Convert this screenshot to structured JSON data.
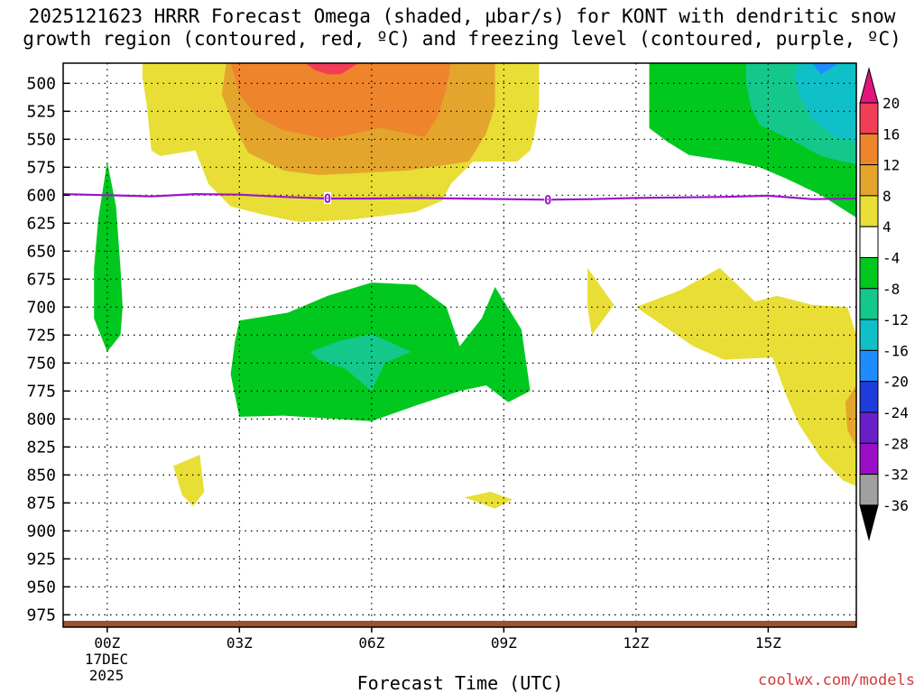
{
  "title_line1": "2025121623 HRRR Forecast Omega (shaded, µbar/s) for KONT with dendritic snow",
  "title_line2": "growth region (contoured, red, ºC) and freezing level (contoured, purple, ºC)",
  "credit": "coolwx.com/models",
  "chart_data": {
    "type": "heatmap",
    "title": "2025121623 HRRR Forecast Omega (shaded, µbar/s) for KONT with dendritic snow growth region (contoured, red, ºC) and freezing level (contoured, purple, ºC)",
    "xlabel": "Forecast Time (UTC)",
    "ylabel": "",
    "x_range_hours": [
      -1,
      17
    ],
    "x_ticks": [
      {
        "hour": 0,
        "label": "00Z"
      },
      {
        "hour": 3,
        "label": "03Z"
      },
      {
        "hour": 6,
        "label": "06Z"
      },
      {
        "hour": 9,
        "label": "09Z"
      },
      {
        "hour": 12,
        "label": "12Z"
      },
      {
        "hour": 15,
        "label": "15Z"
      }
    ],
    "date_label_line1": "17DEC",
    "date_label_line2": "2025",
    "y_range_mb": [
      986,
      482
    ],
    "y_ticks": [
      500,
      525,
      550,
      575,
      600,
      625,
      650,
      675,
      700,
      725,
      750,
      775,
      800,
      825,
      850,
      875,
      900,
      925,
      950,
      975
    ],
    "colorbar": {
      "labels": [
        "20",
        "16",
        "12",
        "8",
        "4",
        "-4",
        "-8",
        "-12",
        "-16",
        "-20",
        "-24",
        "-28",
        "-32",
        "-36"
      ],
      "bands": [
        {
          "lo": 16,
          "hi": 20,
          "color": "#f23d57"
        },
        {
          "lo": 12,
          "hi": 16,
          "color": "#ee852d"
        },
        {
          "lo": 8,
          "hi": 12,
          "color": "#e4a52d"
        },
        {
          "lo": 4,
          "hi": 8,
          "color": "#e8de36"
        },
        {
          "lo": -4,
          "hi": 4,
          "color": "#ffffff"
        },
        {
          "lo": -8,
          "hi": -4,
          "color": "#00c81e"
        },
        {
          "lo": -12,
          "hi": -8,
          "color": "#14c88c"
        },
        {
          "lo": -16,
          "hi": -12,
          "color": "#0fc0c8"
        },
        {
          "lo": -20,
          "hi": -16,
          "color": "#1e8cff"
        },
        {
          "lo": -24,
          "hi": -20,
          "color": "#1e3cdc"
        },
        {
          "lo": -28,
          "hi": -24,
          "color": "#6a1ec8"
        },
        {
          "lo": -32,
          "hi": -28,
          "color": "#9b0ec8"
        },
        {
          "lo": -36,
          "hi": -32,
          "color": "#a0a0a0"
        }
      ],
      "top_arrow_color": "#e0157d",
      "bottom_arrow_color": "#000000"
    },
    "freezing_level": {
      "color": "#9b17c8",
      "label": "0",
      "label_points": [
        {
          "hour": 5,
          "mb": 603
        },
        {
          "hour": 10,
          "mb": 604
        }
      ],
      "points": [
        {
          "hour": -1,
          "mb": 599
        },
        {
          "hour": 0,
          "mb": 600
        },
        {
          "hour": 1,
          "mb": 601
        },
        {
          "hour": 2,
          "mb": 599
        },
        {
          "hour": 3,
          "mb": 599.5
        },
        {
          "hour": 4,
          "mb": 601.5
        },
        {
          "hour": 5,
          "mb": 603
        },
        {
          "hour": 6,
          "mb": 603
        },
        {
          "hour": 7,
          "mb": 602.5
        },
        {
          "hour": 8,
          "mb": 603
        },
        {
          "hour": 9,
          "mb": 603.5
        },
        {
          "hour": 10,
          "mb": 604
        },
        {
          "hour": 11,
          "mb": 603.5
        },
        {
          "hour": 12,
          "mb": 602.5
        },
        {
          "hour": 13,
          "mb": 602
        },
        {
          "hour": 14,
          "mb": 601.5
        },
        {
          "hour": 15,
          "mb": 600.5
        },
        {
          "hour": 16,
          "mb": 603.5
        },
        {
          "hour": 17,
          "mb": 603
        }
      ]
    },
    "surface_color": "#a0522d",
    "regions": [
      {
        "name": "upper-yellow-4to8",
        "value": 6,
        "color": "#e8de36",
        "points": [
          [
            0.8,
            482
          ],
          [
            9.8,
            482
          ],
          [
            9.8,
            490
          ],
          [
            9.8,
            520
          ],
          [
            9.7,
            545
          ],
          [
            9.6,
            560
          ],
          [
            9.3,
            570
          ],
          [
            8.3,
            570
          ],
          [
            7.8,
            590
          ],
          [
            7.6,
            605
          ],
          [
            7.0,
            615
          ],
          [
            5.5,
            622
          ],
          [
            4.4,
            624
          ],
          [
            4.1,
            622
          ],
          [
            3.5,
            617
          ],
          [
            2.8,
            610
          ],
          [
            2.3,
            590
          ],
          [
            2.0,
            560
          ],
          [
            1.2,
            565
          ],
          [
            1.0,
            560
          ],
          [
            0.9,
            520
          ],
          [
            0.8,
            495
          ]
        ]
      },
      {
        "name": "upper-gold-8to12",
        "value": 10,
        "color": "#e4a52d",
        "points": [
          [
            2.7,
            482
          ],
          [
            8.8,
            482
          ],
          [
            8.8,
            520
          ],
          [
            8.6,
            545
          ],
          [
            8.2,
            570
          ],
          [
            6.8,
            578
          ],
          [
            5.8,
            580
          ],
          [
            4.8,
            582
          ],
          [
            4.0,
            578
          ],
          [
            3.2,
            562
          ],
          [
            2.9,
            540
          ],
          [
            2.6,
            510
          ]
        ]
      },
      {
        "name": "upper-orange-12to16",
        "value": 14,
        "color": "#ee852d",
        "points": [
          [
            2.8,
            482
          ],
          [
            7.8,
            482
          ],
          [
            7.7,
            505
          ],
          [
            7.5,
            530
          ],
          [
            7.2,
            548
          ],
          [
            6.2,
            540
          ],
          [
            5.0,
            550
          ],
          [
            4.0,
            542
          ],
          [
            3.4,
            530
          ],
          [
            3.0,
            510
          ]
        ]
      },
      {
        "name": "upper-red-16to20",
        "value": 18,
        "color": "#f23d57",
        "points": [
          [
            4.5,
            482
          ],
          [
            5.7,
            482
          ],
          [
            5.3,
            492
          ],
          [
            5.0,
            492
          ],
          [
            4.7,
            488
          ]
        ]
      },
      {
        "name": "upper-right-green",
        "value": -6,
        "color": "#00c81e",
        "points": [
          [
            12.3,
            482
          ],
          [
            17,
            482
          ],
          [
            17,
            620
          ],
          [
            16.6,
            610
          ],
          [
            16.2,
            600
          ],
          [
            15.4,
            585
          ],
          [
            14.8,
            575
          ],
          [
            14.2,
            570
          ],
          [
            13.2,
            564
          ],
          [
            12.7,
            552
          ],
          [
            12.3,
            540
          ],
          [
            12.3,
            510
          ]
        ]
      },
      {
        "name": "upper-right-teal",
        "value": -10,
        "color": "#14c88c",
        "points": [
          [
            14.5,
            482
          ],
          [
            17,
            482
          ],
          [
            17,
            572
          ],
          [
            16.7,
            570
          ],
          [
            16.2,
            565
          ],
          [
            15.5,
            550
          ],
          [
            14.8,
            537
          ],
          [
            14.6,
            520
          ],
          [
            14.5,
            500
          ]
        ]
      },
      {
        "name": "upper-right-cyan",
        "value": -14,
        "color": "#0fc0c8",
        "points": [
          [
            15.7,
            482
          ],
          [
            17,
            482
          ],
          [
            17,
            552
          ],
          [
            16.5,
            548
          ],
          [
            16.0,
            532
          ],
          [
            15.7,
            510
          ],
          [
            15.6,
            492
          ]
        ]
      },
      {
        "name": "upper-right-blue",
        "value": -18,
        "color": "#1e8cff",
        "points": [
          [
            16.0,
            482
          ],
          [
            16.6,
            482
          ],
          [
            16.2,
            492
          ]
        ]
      },
      {
        "name": "left-green-spike",
        "value": -6,
        "color": "#00c81e",
        "points": [
          [
            0.0,
            570
          ],
          [
            0.2,
            610
          ],
          [
            0.3,
            665
          ],
          [
            0.35,
            700
          ],
          [
            0.3,
            725
          ],
          [
            0.0,
            740
          ],
          [
            -0.3,
            710
          ],
          [
            -0.3,
            665
          ],
          [
            -0.2,
            620
          ]
        ]
      },
      {
        "name": "middle-green",
        "value": -6,
        "color": "#00c81e",
        "points": [
          [
            3.0,
            712
          ],
          [
            4.1,
            705
          ],
          [
            5.0,
            690
          ],
          [
            6.0,
            678
          ],
          [
            7.0,
            680
          ],
          [
            7.7,
            700
          ],
          [
            8.0,
            735
          ],
          [
            8.5,
            710
          ],
          [
            8.8,
            682
          ],
          [
            9.4,
            720
          ],
          [
            9.6,
            775
          ],
          [
            9.1,
            785
          ],
          [
            8.6,
            770
          ],
          [
            8.0,
            775
          ],
          [
            7.0,
            788
          ],
          [
            6.0,
            802
          ],
          [
            4.0,
            797
          ],
          [
            3.0,
            798
          ],
          [
            2.8,
            760
          ],
          [
            2.9,
            730
          ]
        ]
      },
      {
        "name": "middle-teal",
        "value": -10,
        "color": "#14c88c",
        "points": [
          [
            4.6,
            740
          ],
          [
            5.3,
            730
          ],
          [
            6.0,
            724
          ],
          [
            6.9,
            740
          ],
          [
            6.3,
            750
          ],
          [
            6.0,
            775
          ],
          [
            5.4,
            755
          ],
          [
            4.8,
            747
          ]
        ]
      },
      {
        "name": "yellow-11z",
        "value": 6,
        "color": "#e8de36",
        "points": [
          [
            10.9,
            665
          ],
          [
            11.5,
            698
          ],
          [
            11.0,
            725
          ],
          [
            10.9,
            700
          ]
        ]
      },
      {
        "name": "yellow-right",
        "value": 6,
        "color": "#e8de36",
        "points": [
          [
            12.0,
            700
          ],
          [
            13.0,
            685
          ],
          [
            13.9,
            665
          ],
          [
            14.7,
            695
          ],
          [
            15.2,
            690
          ],
          [
            16.0,
            698
          ],
          [
            16.8,
            700
          ],
          [
            17,
            725
          ],
          [
            17,
            860
          ],
          [
            16.7,
            855
          ],
          [
            16.2,
            835
          ],
          [
            15.7,
            805
          ],
          [
            15.4,
            778
          ],
          [
            15.1,
            745
          ],
          [
            14.0,
            747
          ],
          [
            13.3,
            735
          ]
        ]
      },
      {
        "name": "orange-right-edge",
        "value": 10,
        "color": "#e4a52d",
        "points": [
          [
            17,
            770
          ],
          [
            17,
            825
          ],
          [
            16.8,
            810
          ],
          [
            16.75,
            785
          ]
        ]
      },
      {
        "name": "yellow-blob-02z",
        "value": 6,
        "color": "#e8de36",
        "points": [
          [
            1.5,
            842
          ],
          [
            2.1,
            832
          ],
          [
            2.2,
            865
          ],
          [
            1.95,
            878
          ],
          [
            1.7,
            868
          ]
        ]
      },
      {
        "name": "yellow-blob-09z",
        "value": 6,
        "color": "#e8de36",
        "points": [
          [
            8.1,
            870
          ],
          [
            8.7,
            865
          ],
          [
            9.2,
            872
          ],
          [
            8.8,
            880
          ]
        ]
      }
    ]
  }
}
